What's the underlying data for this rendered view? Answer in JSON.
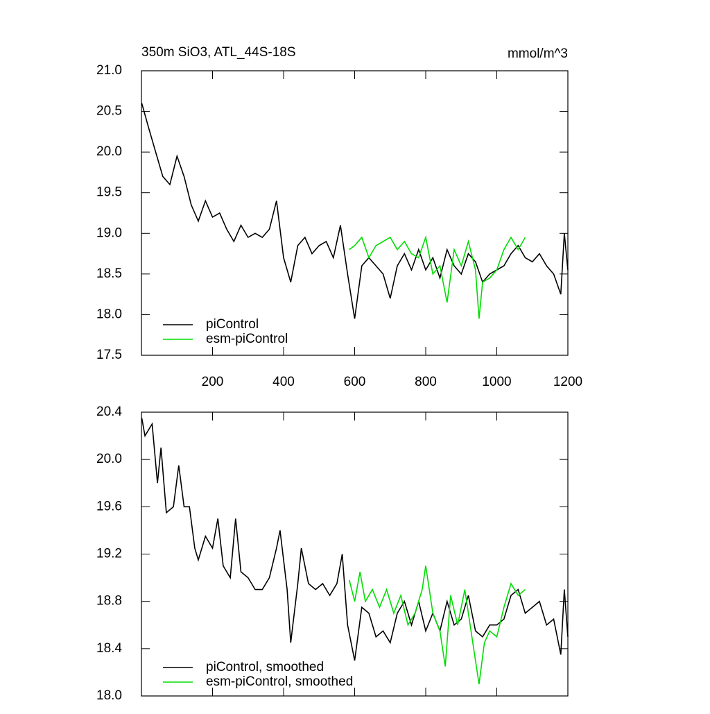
{
  "chart_data": [
    {
      "type": "line",
      "title": "350m SiO3, ATL_44S-18S",
      "units": "mmol/m^3",
      "xlim": [
        0,
        1200
      ],
      "xticks": [
        200,
        400,
        600,
        800,
        1000,
        1200
      ],
      "ylim": [
        17.5,
        21
      ],
      "yticks": [
        17.5,
        {
          "value": 18,
          "label": "18.0"
        },
        18.5,
        {
          "value": 19,
          "label": "19.0"
        },
        19.5,
        {
          "value": 20,
          "label": "20.0"
        },
        20.5,
        {
          "value": 21,
          "label": "21.0"
        }
      ],
      "legend": "lower left",
      "series": [
        {
          "name": "piControl",
          "color": "#000000",
          "x": [
            1,
            20,
            40,
            60,
            80,
            100,
            120,
            140,
            160,
            180,
            200,
            220,
            240,
            260,
            280,
            300,
            320,
            340,
            360,
            380,
            400,
            420,
            440,
            460,
            480,
            500,
            520,
            540,
            560,
            580,
            600,
            620,
            640,
            660,
            680,
            700,
            720,
            740,
            760,
            780,
            800,
            820,
            840,
            860,
            880,
            900,
            920,
            940,
            960,
            980,
            1000,
            1020,
            1040,
            1060,
            1080,
            1100,
            1120,
            1140,
            1160,
            1180,
            1190,
            1200
          ],
          "values": [
            20.6,
            20.3,
            20.0,
            19.7,
            19.6,
            19.95,
            19.7,
            19.35,
            19.15,
            19.4,
            19.2,
            19.25,
            19.05,
            18.9,
            19.1,
            18.95,
            19.0,
            18.95,
            19.05,
            19.4,
            18.7,
            18.4,
            18.85,
            18.95,
            18.75,
            18.85,
            18.9,
            18.7,
            19.1,
            18.5,
            17.95,
            18.6,
            18.7,
            18.6,
            18.5,
            18.2,
            18.6,
            18.75,
            18.55,
            18.8,
            18.55,
            18.7,
            18.45,
            18.8,
            18.6,
            18.5,
            18.75,
            18.65,
            18.4,
            18.5,
            18.55,
            18.6,
            18.75,
            18.85,
            18.7,
            18.65,
            18.75,
            18.6,
            18.5,
            18.25,
            19.0,
            18.55
          ]
        },
        {
          "name": "esm-piControl",
          "color": "#00dd00",
          "x": [
            585,
            600,
            620,
            640,
            660,
            680,
            700,
            720,
            740,
            760,
            780,
            800,
            820,
            840,
            860,
            880,
            900,
            920,
            940,
            950,
            960,
            980,
            1000,
            1020,
            1040,
            1060,
            1080
          ],
          "values": [
            18.8,
            18.85,
            18.95,
            18.7,
            18.85,
            18.9,
            18.95,
            18.8,
            18.9,
            18.75,
            18.7,
            18.95,
            18.5,
            18.6,
            18.15,
            18.8,
            18.6,
            18.9,
            18.55,
            17.95,
            18.4,
            18.45,
            18.55,
            18.8,
            18.95,
            18.8,
            18.95
          ]
        }
      ]
    },
    {
      "type": "line",
      "xlim": [
        0,
        1200
      ],
      "xticks": [
        200,
        400,
        600,
        800,
        1000,
        1200
      ],
      "ylim": [
        18,
        20.4
      ],
      "yticks": [
        {
          "value": 18,
          "label": "18.0"
        },
        18.4,
        18.8,
        19.2,
        19.6,
        {
          "value": 20,
          "label": "20.0"
        },
        20.4
      ],
      "legend": "lower left",
      "series": [
        {
          "name": "piControl, smoothed",
          "color": "#000000",
          "x": [
            1,
            10,
            30,
            45,
            55,
            70,
            90,
            105,
            120,
            135,
            150,
            160,
            180,
            200,
            215,
            230,
            250,
            265,
            280,
            300,
            320,
            340,
            360,
            380,
            390,
            410,
            420,
            440,
            450,
            470,
            490,
            510,
            530,
            550,
            565,
            580,
            600,
            620,
            640,
            660,
            680,
            700,
            720,
            740,
            760,
            780,
            800,
            820,
            840,
            860,
            880,
            900,
            920,
            940,
            960,
            980,
            1000,
            1020,
            1040,
            1060,
            1080,
            1100,
            1120,
            1140,
            1160,
            1180,
            1190,
            1200
          ],
          "values": [
            20.35,
            20.2,
            20.3,
            19.8,
            20.1,
            19.55,
            19.6,
            19.95,
            19.6,
            19.6,
            19.25,
            19.15,
            19.35,
            19.25,
            19.5,
            19.1,
            19.0,
            19.5,
            19.05,
            19.0,
            18.9,
            18.9,
            19.0,
            19.25,
            19.4,
            18.9,
            18.45,
            18.95,
            19.25,
            18.95,
            18.9,
            18.95,
            18.85,
            18.95,
            19.2,
            18.6,
            18.3,
            18.75,
            18.7,
            18.5,
            18.55,
            18.45,
            18.7,
            18.8,
            18.6,
            18.8,
            18.55,
            18.7,
            18.55,
            18.8,
            18.6,
            18.65,
            18.85,
            18.55,
            18.5,
            18.6,
            18.6,
            18.65,
            18.85,
            18.9,
            18.7,
            18.75,
            18.8,
            18.6,
            18.65,
            18.35,
            18.9,
            18.5
          ]
        },
        {
          "name": "esm-piControl, smoothed",
          "color": "#00dd00",
          "x": [
            585,
            600,
            615,
            630,
            650,
            670,
            690,
            710,
            730,
            750,
            770,
            790,
            800,
            820,
            840,
            855,
            870,
            890,
            910,
            930,
            950,
            965,
            980,
            1000,
            1020,
            1040,
            1060,
            1080
          ],
          "values": [
            18.98,
            18.8,
            19.05,
            18.8,
            18.9,
            18.75,
            18.9,
            18.7,
            18.85,
            18.6,
            18.7,
            18.9,
            19.1,
            18.7,
            18.55,
            18.25,
            18.85,
            18.6,
            18.9,
            18.5,
            18.1,
            18.45,
            18.55,
            18.5,
            18.75,
            18.95,
            18.85,
            18.9
          ]
        }
      ]
    }
  ]
}
